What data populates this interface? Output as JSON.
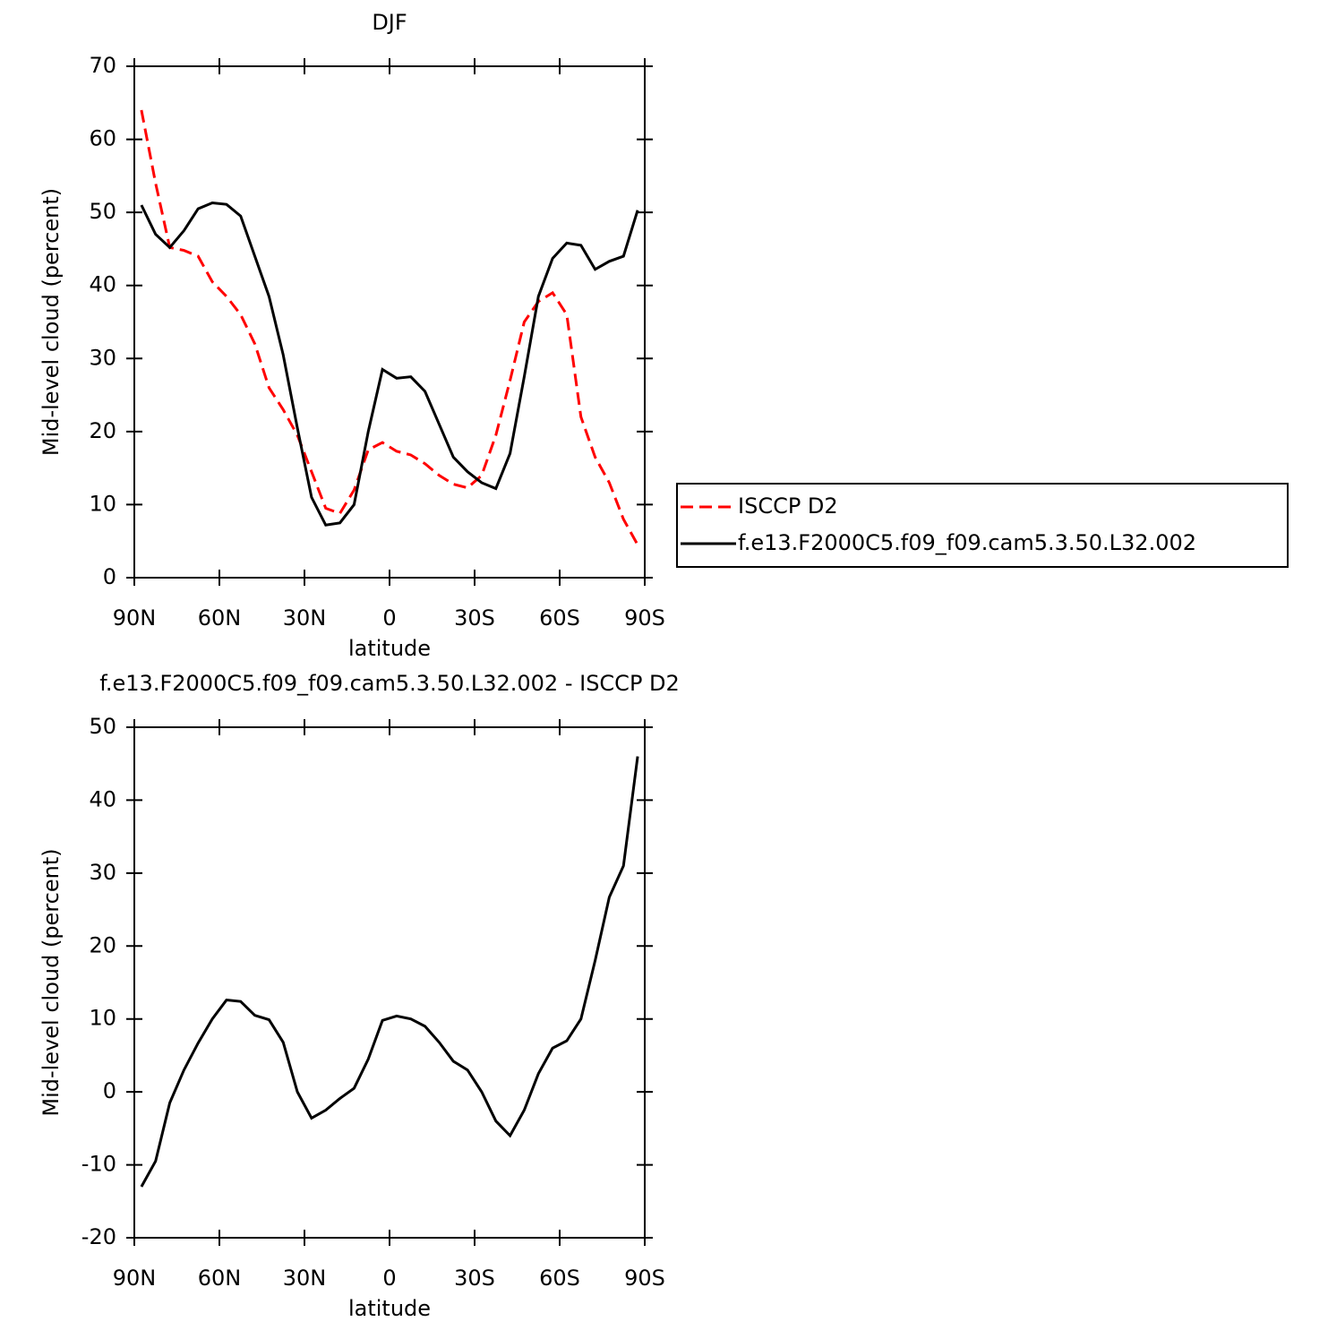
{
  "chart_data": [
    {
      "type": "line",
      "title": "DJF",
      "x_label": "latitude",
      "y_label": "Mid-level cloud (percent)",
      "x": [
        87.5,
        82.5,
        77.5,
        72.5,
        67.5,
        62.5,
        57.5,
        52.5,
        47.5,
        42.5,
        37.5,
        32.5,
        27.5,
        22.5,
        17.5,
        12.5,
        7.5,
        2.5,
        -2.5,
        -7.5,
        -12.5,
        -17.5,
        -22.5,
        -27.5,
        -32.5,
        -37.5,
        -42.5,
        -47.5,
        -52.5,
        -57.5,
        -62.5,
        -67.5,
        -72.5,
        -77.5,
        -82.5,
        -87.5
      ],
      "xlim": [
        90,
        -90
      ],
      "xticks": [
        {
          "value": 90,
          "label": "90N"
        },
        {
          "value": 60,
          "label": "60N"
        },
        {
          "value": 30,
          "label": "30N"
        },
        0,
        {
          "value": -30,
          "label": "30S"
        },
        {
          "value": -60,
          "label": "60S"
        },
        {
          "value": -90,
          "label": "90S"
        }
      ],
      "ylim": [
        0,
        70
      ],
      "yticks": [
        0,
        10,
        20,
        30,
        40,
        50,
        60,
        70
      ],
      "legend": "right",
      "series": [
        {
          "name": "ISCCP D2",
          "color": "#ff0000",
          "dash": "dashed",
          "values": [
            64,
            54,
            45.2,
            44.8,
            44,
            40.5,
            38.5,
            36,
            32,
            26,
            23,
            19.5,
            14.5,
            9.5,
            8.8,
            12,
            17.5,
            18.5,
            17.3,
            16.8,
            15.6,
            14,
            12.8,
            12.3,
            14,
            19.5,
            27,
            35,
            37.8,
            39,
            36,
            22,
            16.5,
            13,
            8,
            4.5
          ]
        },
        {
          "name": "f.e13.F2000C5.f09_f09.cam5.3.50.L32.002",
          "color": "#000000",
          "dash": "solid",
          "values": [
            51,
            47,
            45.2,
            47.5,
            50.5,
            51.3,
            51.1,
            49.5,
            44,
            38.5,
            30.5,
            20.5,
            11,
            7.2,
            7.5,
            10,
            20,
            28.5,
            27.3,
            27.5,
            25.5,
            21,
            16.5,
            14.5,
            13,
            12.2,
            17,
            27.5,
            38.5,
            43.7,
            45.8,
            45.5,
            42.2,
            43.3,
            44,
            50.3
          ]
        }
      ]
    },
    {
      "type": "line",
      "title": "f.e13.F2000C5.f09_f09.cam5.3.50.L32.002 - ISCCP D2",
      "x_label": "latitude",
      "y_label": "Mid-level cloud (percent)",
      "x": [
        87.5,
        82.5,
        77.5,
        72.5,
        67.5,
        62.5,
        57.5,
        52.5,
        47.5,
        42.5,
        37.5,
        32.5,
        27.5,
        22.5,
        17.5,
        12.5,
        7.5,
        2.5,
        -2.5,
        -7.5,
        -12.5,
        -17.5,
        -22.5,
        -27.5,
        -32.5,
        -37.5,
        -42.5,
        -47.5,
        -52.5,
        -57.5,
        -62.5,
        -67.5,
        -72.5,
        -77.5,
        -82.5,
        -87.5
      ],
      "xlim": [
        90,
        -90
      ],
      "xticks": [
        {
          "value": 90,
          "label": "90N"
        },
        {
          "value": 60,
          "label": "60N"
        },
        {
          "value": 30,
          "label": "30N"
        },
        0,
        {
          "value": -30,
          "label": "30S"
        },
        {
          "value": -60,
          "label": "60S"
        },
        {
          "value": -90,
          "label": "90S"
        }
      ],
      "ylim": [
        -20,
        50
      ],
      "yticks": [
        -20,
        -10,
        0,
        10,
        20,
        30,
        40,
        50
      ],
      "series": [
        {
          "color": "#000000",
          "dash": "solid",
          "values": [
            -13,
            -9.5,
            -1.5,
            3,
            6.7,
            10,
            12.6,
            12.4,
            10.5,
            9.9,
            6.8,
            0,
            -3.6,
            -2.5,
            -0.9,
            0.5,
            4.5,
            9.8,
            10.4,
            10,
            9,
            6.8,
            4.2,
            3,
            0,
            -4,
            -6,
            -2.5,
            2.5,
            6,
            7,
            10,
            18,
            26.7,
            31,
            46
          ]
        }
      ]
    }
  ]
}
